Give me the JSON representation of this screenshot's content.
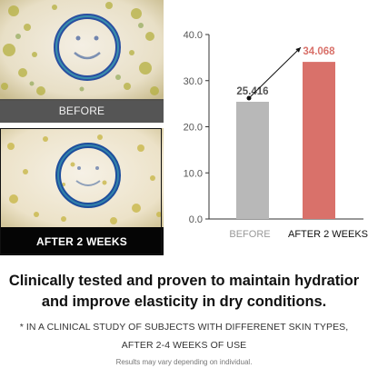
{
  "panels": {
    "before_caption": "BEFORE",
    "after_caption": "AFTER 2 WEEKS"
  },
  "chart_data": {
    "type": "bar",
    "categories": [
      "BEFORE",
      "AFTER 2 WEEKS"
    ],
    "values": [
      25.416,
      34.068
    ],
    "value_labels": [
      "25.416",
      "34.068"
    ],
    "ylim": [
      0,
      40
    ],
    "yticks": [
      "0.0",
      "10.0",
      "20.0",
      "30.0",
      "40.0"
    ],
    "grid": false,
    "annotation": "arrow from BEFORE value to AFTER value",
    "colors": {
      "before_bar": "#b8b8b8",
      "after_bar": "#d9716a",
      "before_label": "#555555",
      "after_label": "#d9716a",
      "before_category": "#999999",
      "after_category": "#111111"
    }
  },
  "headline": {
    "line1": "Clinically tested and proven to maintain hydratior",
    "line2": "and improve elasticity in dry conditions."
  },
  "notes": {
    "line1": "* IN A CLINICAL STUDY OF SUBJECTS WITH DIFFERENET SKIN TYPES,",
    "line2": "AFTER 2-4 WEEKS OF USE",
    "disclaimer": "Results may vary depending on individual."
  }
}
